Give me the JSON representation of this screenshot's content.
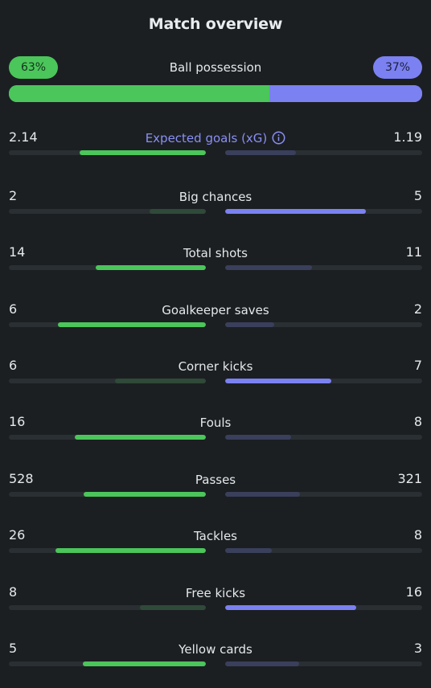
{
  "header": {
    "title": "Match overview"
  },
  "possession": {
    "label": "Ball possession",
    "home": "63%",
    "away": "37%",
    "home_fraction": 0.63
  },
  "colors": {
    "home_accent": "#4bc65a",
    "away_accent": "#7b81f0",
    "background": "#1b1f22"
  },
  "stats": [
    {
      "label": "Expected goals (xG)",
      "home": "2.14",
      "away": "1.19",
      "home_value": 2.14,
      "away_value": 1.19,
      "info_icon": "info-icon"
    },
    {
      "label": "Big chances",
      "home": "2",
      "away": "5",
      "home_value": 2,
      "away_value": 5
    },
    {
      "label": "Total shots",
      "home": "14",
      "away": "11",
      "home_value": 14,
      "away_value": 11
    },
    {
      "label": "Goalkeeper saves",
      "home": "6",
      "away": "2",
      "home_value": 6,
      "away_value": 2
    },
    {
      "label": "Corner kicks",
      "home": "6",
      "away": "7",
      "home_value": 6,
      "away_value": 7
    },
    {
      "label": "Fouls",
      "home": "16",
      "away": "8",
      "home_value": 16,
      "away_value": 8
    },
    {
      "label": "Passes",
      "home": "528",
      "away": "321",
      "home_value": 528,
      "away_value": 321
    },
    {
      "label": "Tackles",
      "home": "26",
      "away": "8",
      "home_value": 26,
      "away_value": 8
    },
    {
      "label": "Free kicks",
      "home": "8",
      "away": "16",
      "home_value": 8,
      "away_value": 16
    },
    {
      "label": "Yellow cards",
      "home": "5",
      "away": "3",
      "home_value": 5,
      "away_value": 3
    }
  ]
}
